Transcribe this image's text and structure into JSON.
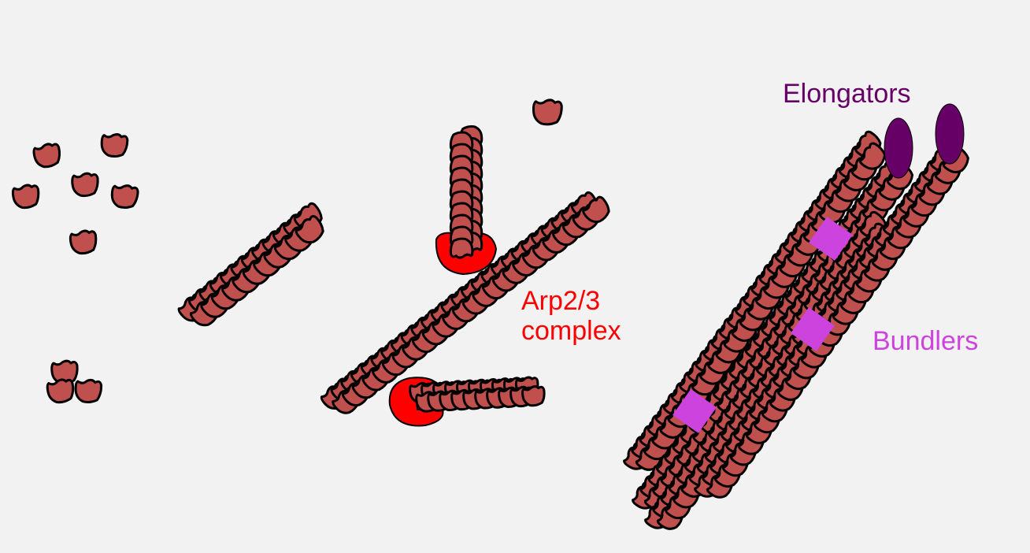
{
  "labels": {
    "elongators": "Elongators",
    "arp23_line1": "Arp2/3",
    "arp23_line2": "complex",
    "bundlers": "Bundlers"
  },
  "colors": {
    "background": "#f2f2f2",
    "actin_monomer": "#c0504d",
    "outline": "#000000",
    "arp23": "#ff0000",
    "elongator": "#660066",
    "bundler": "#cc44dd"
  }
}
